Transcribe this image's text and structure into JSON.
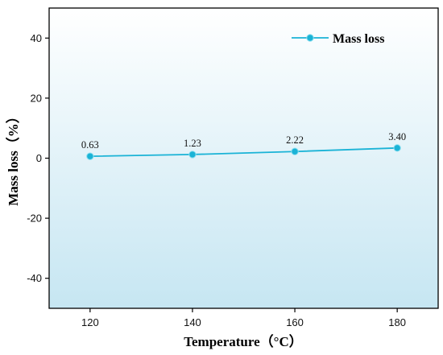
{
  "chart_data": {
    "type": "line",
    "xlabel": "Temperature（°C）",
    "ylabel": "Mass loss（%）",
    "xlim": [
      112,
      188
    ],
    "ylim": [
      -50,
      50
    ],
    "xticks": [
      120,
      140,
      160,
      180
    ],
    "yticks": [
      -40,
      -20,
      0,
      20,
      40
    ],
    "grid": false,
    "legend_position": "top-right",
    "series": [
      {
        "name": "Mass loss",
        "x": [
          120,
          140,
          160,
          180
        ],
        "y": [
          0.63,
          1.23,
          2.22,
          3.4
        ],
        "labels": [
          "0.63",
          "1.23",
          "2.22",
          "3.40"
        ],
        "color": "#1ab3d6",
        "marker": "circle"
      }
    ],
    "background_gradient": [
      "#ffffff",
      "#c6e6f2"
    ]
  }
}
